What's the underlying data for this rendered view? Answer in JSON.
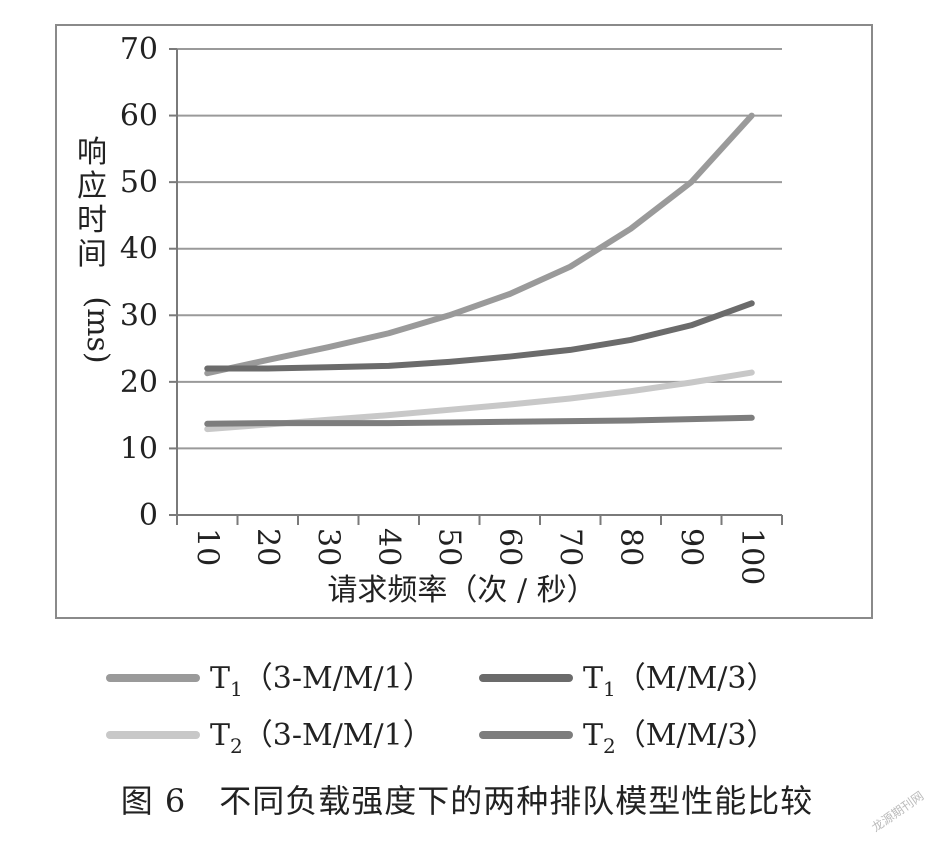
{
  "chart_data": {
    "type": "line",
    "categories": [
      "10",
      "20",
      "30",
      "40",
      "50",
      "60",
      "70",
      "80",
      "90",
      "100"
    ],
    "ylabel": "响应时间（ms）",
    "xlabel": "请求频率（次 / 秒）",
    "ylim": [
      0,
      70
    ],
    "yticks": [
      "0",
      "10",
      "20",
      "30",
      "40",
      "50",
      "60",
      "70"
    ],
    "grid": true,
    "legend_position": "bottom",
    "series": [
      {
        "id": "t1_3mm1",
        "name_main": "T",
        "name_sub": "1",
        "name_rest": "（3-M/M/1）",
        "color": "#9a9a9a",
        "values": [
          21.3,
          23.3,
          25.2,
          27.3,
          30.0,
          33.2,
          37.3,
          43.0,
          50.0,
          60.0
        ]
      },
      {
        "id": "t1_mm3",
        "name_main": "T",
        "name_sub": "1",
        "name_rest": "（M/M/3）",
        "color": "#6b6b6b",
        "values": [
          22.0,
          22.0,
          22.2,
          22.4,
          23.0,
          23.8,
          24.8,
          26.3,
          28.5,
          31.8
        ]
      },
      {
        "id": "t2_3mm1",
        "name_main": "T",
        "name_sub": "2",
        "name_rest": "（3-M/M/1）",
        "color": "#c8c8c8",
        "values": [
          12.9,
          13.6,
          14.3,
          15.0,
          15.8,
          16.6,
          17.5,
          18.6,
          19.9,
          21.4
        ]
      },
      {
        "id": "t2_mm3",
        "name_main": "T",
        "name_sub": "2",
        "name_rest": "（M/M/3）",
        "color": "#7d7d7d",
        "values": [
          13.7,
          13.8,
          13.8,
          13.8,
          13.9,
          14.0,
          14.1,
          14.2,
          14.4,
          14.6
        ]
      }
    ]
  },
  "caption": "图 6　不同负载强度下的两种排队模型性能比较",
  "watermark": "龙源期刊网"
}
